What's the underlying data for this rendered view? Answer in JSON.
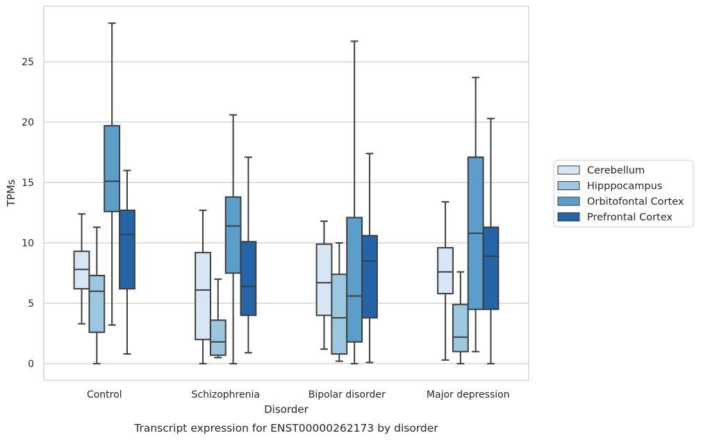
{
  "chart_data": {
    "type": "box",
    "caption": "Transcript expression for ENST00000262173 by disorder",
    "xlabel": "Disorder",
    "ylabel": "TPMs",
    "ylim": [
      -1.2,
      29
    ],
    "yticks": [
      0,
      5,
      10,
      15,
      20,
      25
    ],
    "grid": "horizontal",
    "legend_position": "right",
    "categories": [
      "Control",
      "Schizophrenia",
      "Bipolar disorder",
      "Major depression"
    ],
    "series": [
      {
        "name": "Cerebellum",
        "color": "#d6e6f4",
        "boxes": [
          {
            "whislo": 3.3,
            "q1": 6.2,
            "med": 7.8,
            "q3": 9.3,
            "whishi": 12.4
          },
          {
            "whislo": 0.0,
            "q1": 2.0,
            "med": 6.1,
            "q3": 9.2,
            "whishi": 12.7
          },
          {
            "whislo": 1.2,
            "q1": 4.0,
            "med": 6.7,
            "q3": 9.9,
            "whishi": 11.8
          },
          {
            "whislo": 0.3,
            "q1": 5.8,
            "med": 7.6,
            "q3": 9.6,
            "whishi": 13.4
          }
        ]
      },
      {
        "name": "Hipppocampus",
        "color": "#9cc7e0",
        "boxes": [
          {
            "whislo": 0.0,
            "q1": 2.6,
            "med": 6.0,
            "q3": 7.3,
            "whishi": 11.3
          },
          {
            "whislo": 0.5,
            "q1": 0.7,
            "med": 1.8,
            "q3": 3.6,
            "whishi": 7.0
          },
          {
            "whislo": 0.2,
            "q1": 0.8,
            "med": 3.8,
            "q3": 7.4,
            "whishi": 10.0
          },
          {
            "whislo": 0.0,
            "q1": 1.0,
            "med": 2.2,
            "q3": 4.9,
            "whishi": 7.6
          }
        ]
      },
      {
        "name": "Orbitofontal Cortex",
        "color": "#5a9ec9",
        "boxes": [
          {
            "whislo": 3.2,
            "q1": 12.6,
            "med": 15.1,
            "q3": 19.7,
            "whishi": 28.2
          },
          {
            "whislo": 0.0,
            "q1": 7.5,
            "med": 11.4,
            "q3": 13.8,
            "whishi": 20.6
          },
          {
            "whislo": 0.0,
            "q1": 1.8,
            "med": 5.6,
            "q3": 12.1,
            "whishi": 26.7
          },
          {
            "whislo": 1.0,
            "q1": 4.5,
            "med": 10.8,
            "q3": 17.1,
            "whishi": 23.7
          }
        ]
      },
      {
        "name": "Prefrontal Cortex",
        "color": "#2465a8",
        "boxes": [
          {
            "whislo": 0.8,
            "q1": 6.2,
            "med": 10.7,
            "q3": 12.7,
            "whishi": 16.0
          },
          {
            "whislo": 0.9,
            "q1": 4.0,
            "med": 6.4,
            "q3": 10.1,
            "whishi": 17.1
          },
          {
            "whislo": 0.1,
            "q1": 3.8,
            "med": 8.5,
            "q3": 10.6,
            "whishi": 17.4
          },
          {
            "whislo": 0.0,
            "q1": 4.5,
            "med": 8.9,
            "q3": 11.3,
            "whishi": 20.3
          }
        ]
      }
    ]
  }
}
